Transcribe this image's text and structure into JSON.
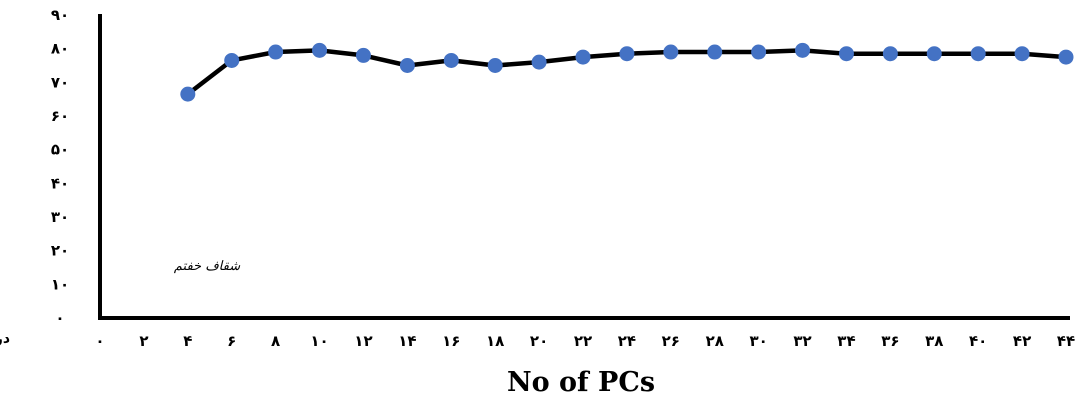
{
  "chart_data": {
    "type": "line",
    "xlabel": "No of PCs",
    "ylabel": "",
    "y_unit_label": "درصد",
    "annotation": "شقاف خفتم",
    "x_ticks": [
      {
        "value": 0,
        "label": "۰"
      },
      {
        "value": 2,
        "label": "۲"
      },
      {
        "value": 4,
        "label": "۴"
      },
      {
        "value": 6,
        "label": "۶"
      },
      {
        "value": 8,
        "label": "۸"
      },
      {
        "value": 10,
        "label": "۱۰"
      },
      {
        "value": 12,
        "label": "۱۲"
      },
      {
        "value": 14,
        "label": "۱۴"
      },
      {
        "value": 16,
        "label": "۱۶"
      },
      {
        "value": 18,
        "label": "۱۸"
      },
      {
        "value": 20,
        "label": "۲۰"
      },
      {
        "value": 22,
        "label": "۲۲"
      },
      {
        "value": 24,
        "label": "۲۴"
      },
      {
        "value": 26,
        "label": "۲۶"
      },
      {
        "value": 28,
        "label": "۲۸"
      },
      {
        "value": 30,
        "label": "۳۰"
      },
      {
        "value": 32,
        "label": "۳۲"
      },
      {
        "value": 34,
        "label": "۳۴"
      },
      {
        "value": 36,
        "label": "۳۶"
      },
      {
        "value": 38,
        "label": "۳۸"
      },
      {
        "value": 40,
        "label": "۴۰"
      },
      {
        "value": 42,
        "label": "۴۲"
      },
      {
        "value": 44,
        "label": "۴۴"
      }
    ],
    "y_ticks": [
      {
        "value": 0,
        "label": "۰"
      },
      {
        "value": 10,
        "label": "۱۰"
      },
      {
        "value": 20,
        "label": "۲۰"
      },
      {
        "value": 30,
        "label": "۳۰"
      },
      {
        "value": 40,
        "label": "۴۰"
      },
      {
        "value": 50,
        "label": "۵۰"
      },
      {
        "value": 60,
        "label": "۶۰"
      },
      {
        "value": 70,
        "label": "۷۰"
      },
      {
        "value": 80,
        "label": "۸۰"
      },
      {
        "value": 90,
        "label": "۹۰"
      }
    ],
    "xlim": [
      0,
      44
    ],
    "ylim": [
      0,
      90
    ],
    "grid": false,
    "legend": "none",
    "series": [
      {
        "x": [
          4,
          6,
          8,
          10,
          12,
          14,
          16,
          18,
          20,
          22,
          24,
          26,
          28,
          30,
          32,
          34,
          36,
          38,
          40,
          42,
          44
        ],
        "y": [
          66.5,
          76.5,
          79,
          79.5,
          78,
          75,
          76.5,
          75,
          76,
          77.5,
          78.5,
          79,
          79,
          79,
          79.5,
          78.5,
          78.5,
          78.5,
          78.5,
          78.5,
          77.5
        ],
        "line_color": "#000000",
        "marker_color": "#4472C4"
      }
    ]
  }
}
